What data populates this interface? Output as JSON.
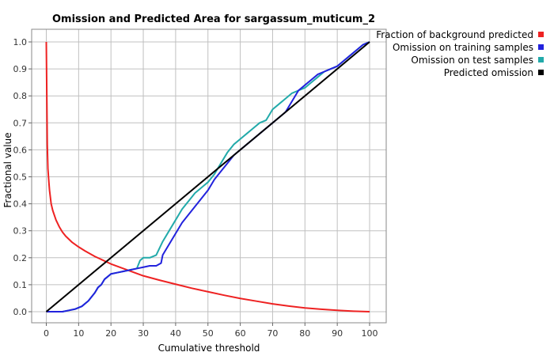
{
  "chart_data": {
    "type": "line",
    "title": "Omission and Predicted Area for sargassum_muticum_2",
    "xlabel": "Cumulative threshold",
    "ylabel": "Fractional value",
    "xlim": [
      0,
      100
    ],
    "ylim": [
      0,
      1
    ],
    "xticks": [
      "0",
      "10",
      "20",
      "30",
      "40",
      "50",
      "60",
      "70",
      "80",
      "90",
      "100"
    ],
    "yticks": [
      "0.0",
      "0.1",
      "0.2",
      "0.3",
      "0.4",
      "0.5",
      "0.6",
      "0.7",
      "0.8",
      "0.9",
      "1.0"
    ],
    "grid": true,
    "legend_position": "right",
    "series": [
      {
        "name": "Fraction of background predicted",
        "color": "#ee2222",
        "x": [
          0,
          0.3,
          0.5,
          0.8,
          1.0,
          1.5,
          2,
          3,
          4,
          5,
          6,
          8,
          10,
          12,
          15,
          20,
          25,
          30,
          35,
          40,
          45,
          50,
          55,
          60,
          65,
          70,
          75,
          80,
          85,
          90,
          95,
          100
        ],
        "y": [
          1.0,
          0.62,
          0.53,
          0.48,
          0.45,
          0.4,
          0.375,
          0.34,
          0.315,
          0.295,
          0.28,
          0.257,
          0.24,
          0.225,
          0.205,
          0.177,
          0.155,
          0.133,
          0.117,
          0.102,
          0.087,
          0.074,
          0.061,
          0.049,
          0.039,
          0.029,
          0.021,
          0.014,
          0.009,
          0.005,
          0.002,
          0.0
        ]
      },
      {
        "name": "Omission on training samples",
        "color": "#2222dd",
        "x": [
          0,
          5,
          7,
          9,
          11,
          13,
          15,
          16,
          17,
          18,
          19,
          20,
          22,
          24,
          26,
          28,
          30,
          32,
          34,
          35.5,
          36,
          38,
          40,
          42,
          44,
          46,
          48,
          50,
          52,
          54,
          56,
          58,
          60,
          62,
          64,
          66,
          68,
          70,
          72,
          74,
          76,
          78,
          80,
          82,
          84,
          86,
          88,
          90,
          92,
          94,
          96,
          98,
          100
        ],
        "y": [
          0,
          0.0,
          0.005,
          0.01,
          0.02,
          0.04,
          0.07,
          0.09,
          0.1,
          0.12,
          0.13,
          0.14,
          0.145,
          0.15,
          0.155,
          0.16,
          0.165,
          0.17,
          0.17,
          0.18,
          0.21,
          0.25,
          0.29,
          0.33,
          0.36,
          0.39,
          0.42,
          0.45,
          0.49,
          0.52,
          0.55,
          0.58,
          0.6,
          0.62,
          0.64,
          0.66,
          0.68,
          0.7,
          0.72,
          0.74,
          0.78,
          0.82,
          0.84,
          0.86,
          0.88,
          0.89,
          0.9,
          0.91,
          0.93,
          0.95,
          0.97,
          0.99,
          1.0
        ]
      },
      {
        "name": "Omission on test samples",
        "color": "#22aaaa",
        "x": [
          0,
          5,
          7,
          9,
          11,
          13,
          15,
          16,
          17,
          18,
          19,
          20,
          22,
          24,
          26,
          28,
          29,
          30,
          32,
          34,
          36,
          38,
          40,
          42,
          44,
          46,
          48,
          50,
          52,
          54,
          56,
          58,
          60,
          62,
          64,
          66,
          68,
          70,
          72,
          74,
          76,
          78,
          80,
          82,
          84,
          86,
          88,
          90,
          92,
          94,
          96,
          98,
          100
        ],
        "y": [
          0,
          0.0,
          0.005,
          0.01,
          0.02,
          0.04,
          0.07,
          0.09,
          0.1,
          0.12,
          0.13,
          0.14,
          0.145,
          0.15,
          0.155,
          0.16,
          0.19,
          0.2,
          0.2,
          0.21,
          0.26,
          0.3,
          0.34,
          0.38,
          0.41,
          0.44,
          0.46,
          0.48,
          0.51,
          0.55,
          0.59,
          0.62,
          0.64,
          0.66,
          0.68,
          0.7,
          0.71,
          0.75,
          0.77,
          0.79,
          0.81,
          0.82,
          0.83,
          0.85,
          0.87,
          0.89,
          0.9,
          0.91,
          0.93,
          0.95,
          0.97,
          0.99,
          1.0
        ]
      },
      {
        "name": "Predicted omission",
        "color": "#000000",
        "x": [
          0,
          100
        ],
        "y": [
          0,
          1
        ]
      }
    ]
  }
}
